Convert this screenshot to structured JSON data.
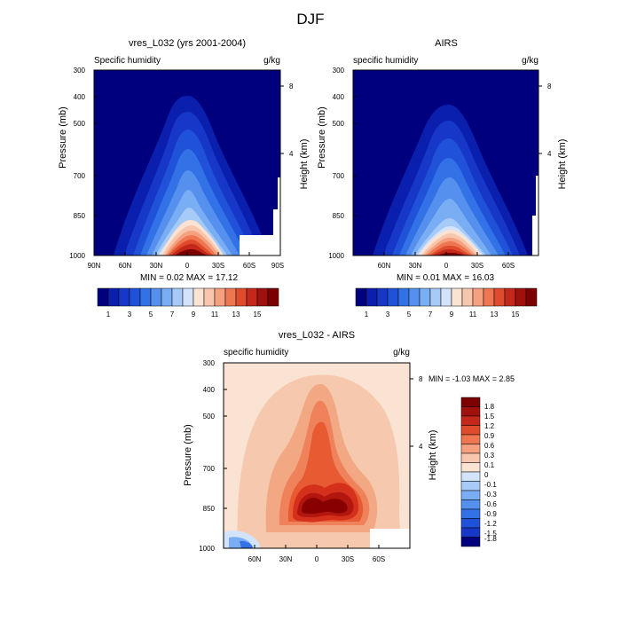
{
  "figure": {
    "title": "DJF"
  },
  "chart_data": [
    {
      "type": "heatmap",
      "title": "vres_L032 (yrs 2001-2004)",
      "left_label": "Specific humidity",
      "units": "g/kg",
      "ylabel": "Pressure (mb)",
      "ylabel_right": "Height (km)",
      "yticks": [
        "300",
        "400",
        "500",
        "700",
        "850",
        "1000"
      ],
      "yticks_right": [
        "8",
        "4"
      ],
      "xticks": [
        "90N",
        "60N",
        "30N",
        "0",
        "30S",
        "60S",
        "90S"
      ],
      "stats": "MIN =  0.02   MAX =  17.12",
      "colorbar_labels": [
        "1",
        "3",
        "5",
        "7",
        "9",
        "11",
        "13",
        "15"
      ]
    },
    {
      "type": "heatmap",
      "title": "AIRS",
      "left_label": "specific humidity",
      "units": "g/kg",
      "ylabel": "Pressure (mb)",
      "ylabel_right": "Height (km)",
      "yticks": [
        "300",
        "400",
        "500",
        "700",
        "850",
        "1000"
      ],
      "yticks_right": [
        "8",
        "4"
      ],
      "xticks": [
        "60N",
        "30N",
        "0",
        "30S",
        "60S"
      ],
      "stats": "MIN =  0.01   MAX =  16.03",
      "colorbar_labels": [
        "1",
        "3",
        "5",
        "7",
        "9",
        "11",
        "13",
        "15"
      ]
    },
    {
      "type": "heatmap",
      "title": "vres_L032 - AIRS",
      "left_label": "specific humidity",
      "units": "g/kg",
      "ylabel": "Pressure (mb)",
      "ylabel_right": "Height (km)",
      "yticks": [
        "300",
        "400",
        "500",
        "700",
        "850",
        "1000"
      ],
      "yticks_right": [
        "8",
        "4"
      ],
      "xticks": [
        "60N",
        "30N",
        "0",
        "30S",
        "60S"
      ],
      "stats": "MIN = -1.03  MAX =   2.85",
      "colorbar_labels": [
        "1.8",
        "1.5",
        "1.2",
        "0.9",
        "0.6",
        "0.3",
        "0.1",
        "0",
        "-0.1",
        "-0.3",
        "-0.6",
        "-0.9",
        "-1.2",
        "-1.5",
        "-1.8"
      ]
    }
  ],
  "palette_abs": [
    "#00007f",
    "#0a1fae",
    "#1637c7",
    "#2052d9",
    "#3371e6",
    "#5590ee",
    "#7aaef4",
    "#a7cbf8",
    "#d3e4fa",
    "#fbe3d4",
    "#f8c6ac",
    "#f5a07e",
    "#ee7752",
    "#de4b2d",
    "#c4281a",
    "#a0110e",
    "#7d0000"
  ],
  "palette_diff": [
    "#f9e4d3",
    "#f6c8ad",
    "#f3a884",
    "#ef825a",
    "#e85a32",
    "#d4301b",
    "#b2160f",
    "#880000"
  ],
  "colorbar_abs_colors": [
    "#00007f",
    "#0a1fae",
    "#1637c7",
    "#2052d9",
    "#3371e6",
    "#5590ee",
    "#7aaef4",
    "#a7cbf8",
    "#d3e4fa",
    "#fbe3d4",
    "#f8c6ac",
    "#f5a07e",
    "#ee7752",
    "#de4b2d",
    "#c4281a",
    "#a0110e",
    "#7d0000"
  ],
  "colorbar_diff_colors": [
    "#7d0000",
    "#a0110e",
    "#c4281a",
    "#de4b2d",
    "#ee7752",
    "#f5a07e",
    "#f8c6ac",
    "#fbe3d4",
    "#d3e4fa",
    "#a7cbf8",
    "#7aaef4",
    "#5590ee",
    "#3371e6",
    "#2052d9",
    "#1637c7",
    "#00007f"
  ]
}
